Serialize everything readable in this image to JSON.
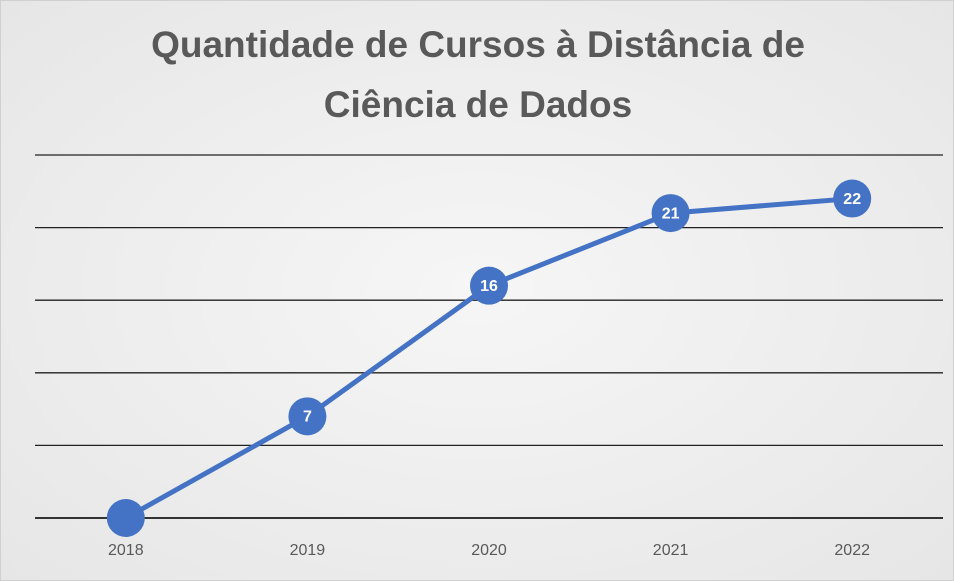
{
  "chart_data": {
    "type": "line",
    "title": "Quantidade de Cursos à Distância de Ciência de Dados",
    "categories": [
      "2018",
      "2019",
      "2020",
      "2021",
      "2022"
    ],
    "values": [
      0,
      7,
      16,
      21,
      22
    ],
    "value_labels": [
      null,
      "7",
      "16",
      "21",
      "22"
    ],
    "color": "#4472c4",
    "ylim": [
      0,
      25
    ],
    "yticks": [
      0,
      5,
      10,
      15,
      20,
      25
    ],
    "grid": true
  }
}
